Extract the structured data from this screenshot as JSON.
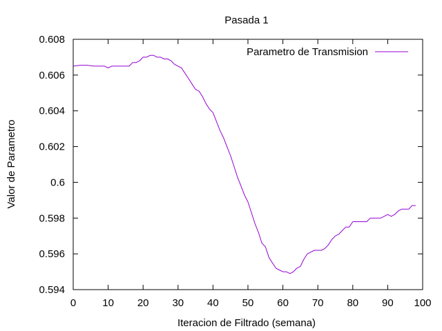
{
  "chart_data": {
    "type": "line",
    "title": "Pasada 1",
    "xlabel": "Iteracion de Filtrado (semana)",
    "ylabel": "Valor de Parametro",
    "xlim": [
      0,
      100
    ],
    "ylim": [
      0.594,
      0.608
    ],
    "x_ticks": [
      0,
      10,
      20,
      30,
      40,
      50,
      60,
      70,
      80,
      90,
      100
    ],
    "y_ticks": [
      0.594,
      0.596,
      0.598,
      0.6,
      0.602,
      0.604,
      0.606,
      0.608
    ],
    "x_tick_labels": [
      "0",
      "10",
      "20",
      "30",
      "40",
      "50",
      "60",
      "70",
      "80",
      "90",
      "100"
    ],
    "y_tick_labels": [
      "0.594",
      "0.596",
      "0.598",
      "0.6",
      "0.602",
      "0.604",
      "0.606",
      "0.608"
    ],
    "grid": false,
    "legend_position": "top-right",
    "series": [
      {
        "name": "Parametro de Transmision",
        "color": "#9400d3",
        "x": [
          0,
          2,
          4,
          6,
          8,
          9,
          10,
          11,
          12,
          14,
          16,
          17,
          18,
          19,
          20,
          21,
          22,
          23,
          24,
          25,
          26,
          27,
          28,
          29,
          30,
          31,
          32,
          33,
          34,
          35,
          36,
          37,
          38,
          39,
          40,
          41,
          42,
          43,
          44,
          45,
          46,
          47,
          48,
          49,
          50,
          51,
          52,
          53,
          54,
          55,
          56,
          57,
          58,
          59,
          60,
          61,
          62,
          63,
          64,
          65,
          66,
          67,
          68,
          69,
          70,
          71,
          72,
          73,
          74,
          75,
          76,
          77,
          78,
          79,
          80,
          82,
          84,
          85,
          86,
          87,
          88,
          89,
          90,
          91,
          92,
          93,
          94,
          95,
          96,
          97,
          98
        ],
        "y": [
          0.6065,
          0.60655,
          0.60655,
          0.6065,
          0.6065,
          0.6065,
          0.6064,
          0.6065,
          0.6065,
          0.6065,
          0.6065,
          0.6067,
          0.6067,
          0.6068,
          0.607,
          0.607,
          0.6071,
          0.6071,
          0.607,
          0.607,
          0.6069,
          0.6069,
          0.6068,
          0.6066,
          0.6065,
          0.6064,
          0.6061,
          0.6058,
          0.6055,
          0.6052,
          0.6051,
          0.6048,
          0.6044,
          0.6041,
          0.6039,
          0.6034,
          0.6029,
          0.6025,
          0.602,
          0.6015,
          0.6009,
          0.6003,
          0.5998,
          0.5993,
          0.5989,
          0.5983,
          0.5977,
          0.5972,
          0.5966,
          0.5964,
          0.5958,
          0.5955,
          0.5952,
          0.5951,
          0.595,
          0.595,
          0.5949,
          0.595,
          0.5952,
          0.5953,
          0.5957,
          0.596,
          0.5961,
          0.5962,
          0.5962,
          0.5962,
          0.5963,
          0.5965,
          0.5968,
          0.597,
          0.5971,
          0.5973,
          0.5975,
          0.5975,
          0.5978,
          0.5978,
          0.5978,
          0.598,
          0.598,
          0.598,
          0.598,
          0.5981,
          0.5982,
          0.5981,
          0.5982,
          0.5984,
          0.5985,
          0.5985,
          0.5985,
          0.5987,
          0.5987
        ]
      }
    ]
  }
}
